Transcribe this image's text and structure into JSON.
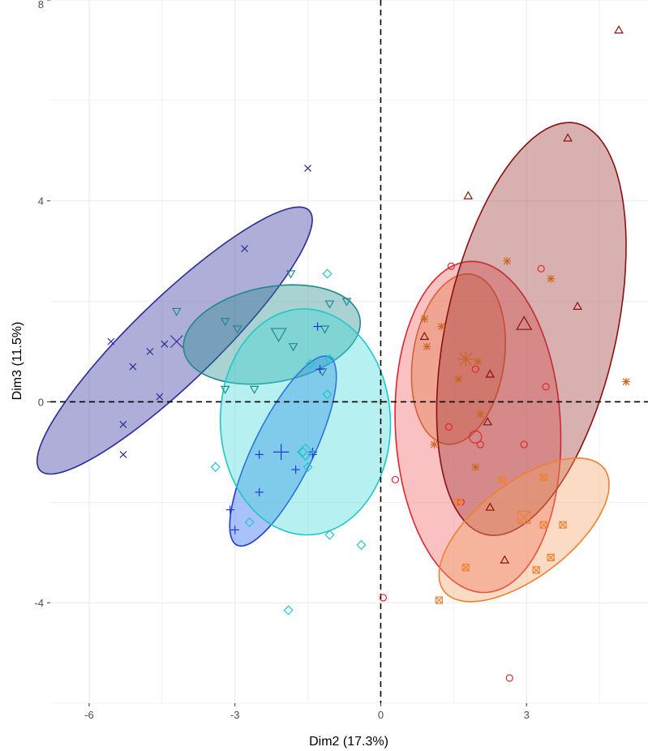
{
  "chart_data": {
    "type": "scatter",
    "title": "",
    "xlabel": "Dim2 (17.3%)",
    "ylabel": "Dim3 (11.5%)",
    "xlim": [
      -6.8,
      5.5
    ],
    "ylim": [
      -6.0,
      8.0
    ],
    "x_ticks": [
      -6,
      -3,
      0,
      3
    ],
    "y_ticks": [
      -4,
      0,
      4,
      8
    ],
    "grid": true,
    "reference_lines": {
      "x": 0,
      "y": 0,
      "style": "dashed"
    },
    "legend": "none",
    "groups": [
      {
        "shape": "x",
        "color": "#2b2b9a",
        "fill": "#2b2b9a",
        "centroid": [
          -4.2,
          1.2
        ],
        "ellipse": {
          "cx": -4.24,
          "cy": 1.22,
          "rx": 3.79,
          "ry": 0.85,
          "angle": 43
        },
        "points": [
          [
            -5.55,
            1.2
          ],
          [
            -5.1,
            0.7
          ],
          [
            -4.75,
            1.0
          ],
          [
            -4.45,
            1.15
          ],
          [
            -4.55,
            0.1
          ],
          [
            -5.3,
            -0.45
          ],
          [
            -5.3,
            -1.05
          ],
          [
            -2.8,
            3.05
          ],
          [
            -1.5,
            4.65
          ]
        ]
      },
      {
        "shape": "triangle-down",
        "color": "#1f8a8a",
        "fill": "#1f8a8a",
        "centroid": [
          -2.1,
          1.35
        ],
        "ellipse": {
          "cx": -2.24,
          "cy": 1.34,
          "rx": 1.84,
          "ry": 0.95,
          "angle": 10
        },
        "points": [
          [
            -4.2,
            1.8
          ],
          [
            -3.2,
            1.6
          ],
          [
            -2.95,
            1.45
          ],
          [
            -3.2,
            0.25
          ],
          [
            -2.6,
            0.25
          ],
          [
            -1.8,
            1.1
          ],
          [
            -1.85,
            2.55
          ],
          [
            -1.05,
            1.95
          ],
          [
            -0.7,
            2.0
          ],
          [
            -1.15,
            1.45
          ],
          [
            -1.2,
            0.6
          ]
        ]
      },
      {
        "shape": "plus",
        "color": "#1e3adb",
        "fill": "#1e5ff0",
        "centroid": [
          -2.05,
          -1.0
        ],
        "ellipse": {
          "cx": -2.01,
          "cy": -0.98,
          "rx": 2.1,
          "ry": 0.61,
          "angle": 63
        },
        "points": [
          [
            -1.3,
            1.5
          ],
          [
            -1.25,
            0.65
          ],
          [
            -1.4,
            -1.0
          ],
          [
            -1.75,
            -1.35
          ],
          [
            -2.5,
            -1.05
          ],
          [
            -2.5,
            -1.8
          ],
          [
            -3.1,
            -2.15
          ],
          [
            -3.0,
            -2.55
          ],
          [
            -1.4,
            -1.05
          ]
        ]
      },
      {
        "shape": "diamond",
        "color": "#1ec8c8",
        "fill": "#3fd7d7",
        "centroid": [
          -1.55,
          -1.0
        ],
        "ellipse": {
          "cx": -1.55,
          "cy": -0.4,
          "rx": 2.25,
          "ry": 1.75,
          "angle": 92
        },
        "points": [
          [
            -1.1,
            2.55
          ],
          [
            -1.05,
            0.85
          ],
          [
            -1.1,
            0.15
          ],
          [
            -1.45,
            0.75
          ],
          [
            -1.6,
            -1.0
          ],
          [
            -1.5,
            -1.3
          ],
          [
            -3.4,
            -1.3
          ],
          [
            -2.7,
            -2.4
          ],
          [
            -1.05,
            -2.65
          ],
          [
            -0.4,
            -2.85
          ],
          [
            -1.9,
            -4.15
          ]
        ]
      },
      {
        "shape": "asterisk",
        "color": "#c9651e",
        "fill": "#d98a3c",
        "centroid": [
          1.75,
          0.85
        ],
        "ellipse": {
          "cx": 1.6,
          "cy": 0.85,
          "rx": 1.71,
          "ry": 0.94,
          "angle": 81
        },
        "points": [
          [
            2.6,
            2.8
          ],
          [
            3.5,
            2.45
          ],
          [
            0.9,
            1.65
          ],
          [
            0.95,
            1.1
          ],
          [
            1.25,
            1.5
          ],
          [
            2.0,
            0.8
          ],
          [
            1.6,
            0.45
          ],
          [
            2.05,
            -0.25
          ],
          [
            1.1,
            -0.85
          ],
          [
            1.95,
            -1.3
          ],
          [
            5.05,
            0.4
          ]
        ]
      },
      {
        "shape": "circle",
        "color": "#e0262e",
        "fill": "#ef5b5b",
        "centroid": [
          1.95,
          -0.7
        ],
        "ellipse": {
          "cx": 2.0,
          "cy": -0.5,
          "rx": 3.3,
          "ry": 1.7,
          "angle": 93
        },
        "points": [
          [
            1.45,
            2.7
          ],
          [
            3.3,
            2.65
          ],
          [
            1.95,
            0.65
          ],
          [
            3.4,
            0.3
          ],
          [
            1.4,
            -0.5
          ],
          [
            2.05,
            -0.85
          ],
          [
            2.95,
            -0.85
          ],
          [
            0.3,
            -1.55
          ],
          [
            1.65,
            -2.0
          ],
          [
            0.05,
            -3.9
          ],
          [
            2.65,
            -5.5
          ]
        ]
      },
      {
        "shape": "triangle-up",
        "color": "#8b1010",
        "fill": "#9b3030",
        "centroid": [
          2.95,
          1.55
        ],
        "ellipse": {
          "cx": 3.1,
          "cy": 1.45,
          "rx": 4.2,
          "ry": 1.75,
          "angle": 77
        },
        "points": [
          [
            4.9,
            7.4
          ],
          [
            3.85,
            5.25
          ],
          [
            1.8,
            4.1
          ],
          [
            4.05,
            1.9
          ],
          [
            0.9,
            1.3
          ],
          [
            2.25,
            0.55
          ],
          [
            2.2,
            -0.4
          ],
          [
            2.25,
            -2.1
          ],
          [
            2.55,
            -3.15
          ]
        ]
      },
      {
        "shape": "square-x",
        "color": "#f08030",
        "fill": "#f5a060",
        "centroid": [
          2.95,
          -2.3
        ],
        "ellipse": {
          "cx": 2.95,
          "cy": -2.55,
          "rx": 2.05,
          "ry": 0.95,
          "angle": 36
        },
        "points": [
          [
            2.5,
            -1.55
          ],
          [
            3.35,
            -1.5
          ],
          [
            1.6,
            -2.0
          ],
          [
            3.35,
            -2.45
          ],
          [
            3.75,
            -2.45
          ],
          [
            3.5,
            -3.1
          ],
          [
            3.2,
            -3.35
          ],
          [
            1.75,
            -3.3
          ],
          [
            1.2,
            -3.95
          ]
        ]
      }
    ]
  }
}
